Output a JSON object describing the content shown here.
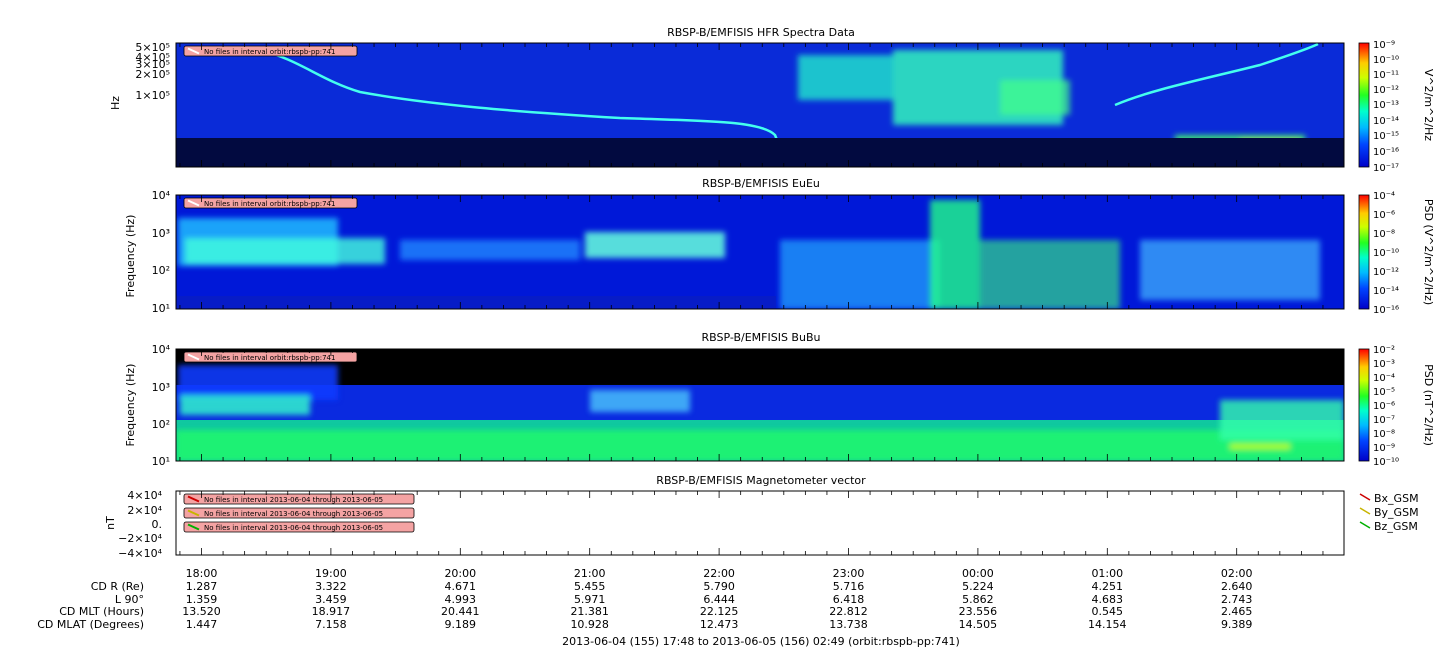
{
  "footer": "2013-06-04 (155) 17:48 to 2013-06-05 (156) 02:49 (orbit:rbspb-pp:741)",
  "time_ticks": [
    "18:00",
    "19:00",
    "20:00",
    "21:00",
    "22:00",
    "23:00",
    "00:00",
    "01:00",
    "02:00"
  ],
  "ephemeris": {
    "labels": [
      "CD R (Re)",
      "L 90°",
      "CD MLT (Hours)",
      "CD MLAT (Degrees)"
    ],
    "rows": [
      [
        "1.287",
        "3.322",
        "4.671",
        "5.455",
        "5.790",
        "5.716",
        "5.224",
        "4.251",
        "2.640"
      ],
      [
        "1.359",
        "3.459",
        "4.993",
        "5.971",
        "6.444",
        "6.418",
        "5.862",
        "4.683",
        "2.743"
      ],
      [
        "13.520",
        "18.917",
        "20.441",
        "21.381",
        "22.125",
        "22.812",
        "23.556",
        "0.545",
        "2.465"
      ],
      [
        "1.447",
        "7.158",
        "9.189",
        "10.928",
        "12.473",
        "13.738",
        "14.505",
        "14.154",
        "9.389"
      ]
    ]
  },
  "colors": {
    "background": "#000000",
    "low": "#0022ff",
    "mid": "#00ff88",
    "high": "#ff0000"
  },
  "chart_data": [
    {
      "type": "heatmap",
      "title": "RBSP-B/EMFISIS  HFR Spectra Data",
      "ylabel": "Hz",
      "yscale": "log",
      "ytick_labels": [
        "5×10⁵",
        "4×10⁵",
        "3×10⁵",
        "2×10⁵",
        "1×10⁵"
      ],
      "colorbar_label": "V^2/m^2/Hz",
      "colorbar_ticks": [
        "10⁻⁹",
        "10⁻¹⁰",
        "10⁻¹¹",
        "10⁻¹²",
        "10⁻¹³",
        "10⁻¹⁴",
        "10⁻¹⁵",
        "10⁻¹⁶",
        "10⁻¹⁷"
      ],
      "annotations": [
        "No files in interval orbit:rbspb-pp:741"
      ]
    },
    {
      "type": "heatmap",
      "title": "RBSP-B/EMFISIS  EuEu",
      "ylabel": "Frequency (Hz)",
      "yscale": "log",
      "ytick_labels": [
        "10⁴",
        "10³",
        "10²",
        "10¹"
      ],
      "colorbar_label": "PSD (V^2/m^2/Hz)",
      "colorbar_ticks": [
        "10⁻⁴",
        "10⁻⁶",
        "10⁻⁸",
        "10⁻¹⁰",
        "10⁻¹²",
        "10⁻¹⁴",
        "10⁻¹⁶"
      ],
      "annotations": [
        "No files in interval orbit:rbspb-pp:741"
      ]
    },
    {
      "type": "heatmap",
      "title": "RBSP-B/EMFISIS  BuBu",
      "ylabel": "Frequency (Hz)",
      "yscale": "log",
      "ytick_labels": [
        "10⁴",
        "10³",
        "10²",
        "10¹"
      ],
      "colorbar_label": "PSD (nT^2/Hz)",
      "colorbar_ticks": [
        "10⁻²",
        "10⁻³",
        "10⁻⁴",
        "10⁻⁵",
        "10⁻⁶",
        "10⁻⁷",
        "10⁻⁸",
        "10⁻⁹",
        "10⁻¹⁰"
      ],
      "annotations": [
        "No files in interval orbit:rbspb-pp:741"
      ]
    },
    {
      "type": "line",
      "title": "RBSP-B/EMFISIS  Magnetometer vector",
      "ylabel": "nT",
      "ytick_labels": [
        "4×10⁴",
        "2×10⁴",
        "0.",
        "−2×10⁴",
        "−4×10⁴"
      ],
      "ylim": [
        -40000,
        40000
      ],
      "series": [
        {
          "name": "Bx_GSM",
          "color": "#cc0000"
        },
        {
          "name": "By_GSM",
          "color": "#c8b400"
        },
        {
          "name": "Bz_GSM",
          "color": "#00b000"
        }
      ],
      "annotations": [
        "No files in interval 2013-06-04 through 2013-06-05",
        "No files in interval 2013-06-04 through 2013-06-05",
        "No files in interval 2013-06-04 through 2013-06-05"
      ]
    }
  ]
}
